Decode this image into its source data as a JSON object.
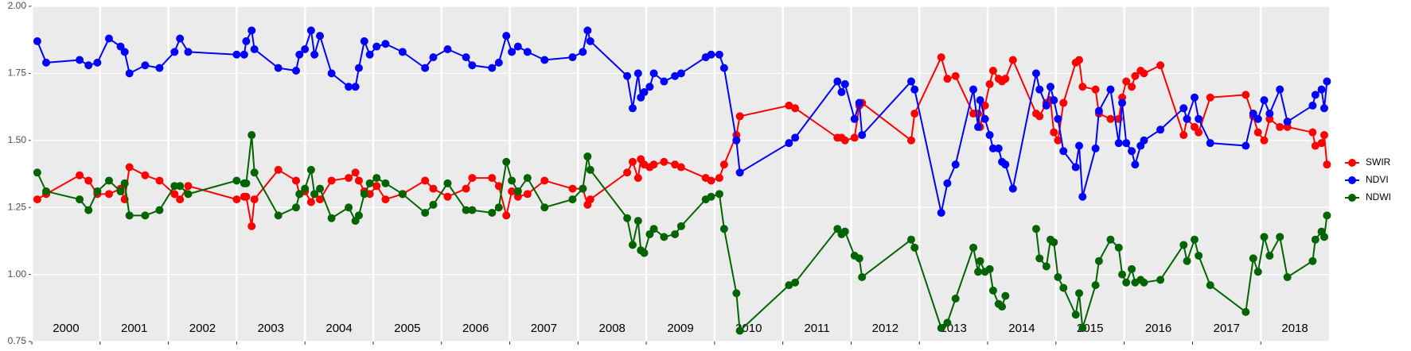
{
  "chart_data": {
    "type": "line",
    "x": [
      2000.08,
      2000.21,
      2000.7,
      2000.83,
      2000.96,
      2001.13,
      2001.3,
      2001.36,
      2001.43,
      2001.66,
      2001.87,
      2002.09,
      2002.17,
      2002.29,
      2003.0,
      2003.11,
      2003.14,
      2003.22,
      2003.26,
      2003.61,
      2003.87,
      2003.92,
      2004.0,
      2004.09,
      2004.14,
      2004.22,
      2004.39,
      2004.64,
      2004.74,
      2004.79,
      2004.87,
      2004.95,
      2005.05,
      2005.18,
      2005.43,
      2005.76,
      2005.88,
      2006.09,
      2006.36,
      2006.45,
      2006.74,
      2006.84,
      2006.95,
      2007.03,
      2007.12,
      2007.26,
      2007.51,
      2007.92,
      2008.07,
      2008.14,
      2008.18,
      2008.72,
      2008.8,
      2008.88,
      2008.92,
      2008.97,
      2009.05,
      2009.11,
      2009.26,
      2009.42,
      2009.51,
      2009.87,
      2009.95,
      2010.07,
      2010.14,
      2010.32,
      2010.37,
      2011.09,
      2011.18,
      2011.8,
      2011.86,
      2011.91,
      2012.05,
      2012.12,
      2012.16,
      2012.88,
      2012.93,
      2013.32,
      2013.41,
      2013.53,
      2013.79,
      2013.86,
      2013.89,
      2013.96,
      2014.03,
      2014.08,
      2014.16,
      2014.21,
      2014.26,
      2014.37,
      2014.71,
      2014.76,
      2014.86,
      2014.92,
      2014.97,
      2015.03,
      2015.11,
      2015.29,
      2015.34,
      2015.39,
      2015.58,
      2015.63,
      2015.8,
      2015.92,
      2015.97,
      2016.03,
      2016.11,
      2016.16,
      2016.24,
      2016.29,
      2016.53,
      2016.87,
      2016.92,
      2017.03,
      2017.09,
      2017.26,
      2017.78,
      2017.89,
      2017.96,
      2018.05,
      2018.13,
      2018.28,
      2018.39,
      2018.76,
      2018.8,
      2018.89,
      2018.93,
      2018.97
    ],
    "series": [
      {
        "name": "SWIR",
        "color": "#ff0000",
        "values": [
          1.28,
          1.3,
          1.37,
          1.35,
          1.3,
          1.3,
          1.32,
          1.28,
          1.4,
          1.37,
          1.35,
          1.3,
          1.28,
          1.33,
          1.28,
          1.29,
          1.29,
          1.18,
          1.28,
          1.39,
          1.35,
          1.3,
          1.31,
          1.27,
          1.3,
          1.28,
          1.35,
          1.36,
          1.38,
          1.35,
          1.31,
          1.3,
          1.33,
          1.28,
          1.3,
          1.35,
          1.32,
          1.29,
          1.32,
          1.36,
          1.36,
          1.33,
          1.22,
          1.31,
          1.29,
          1.3,
          1.35,
          1.32,
          1.32,
          1.26,
          1.28,
          1.38,
          1.42,
          1.36,
          1.43,
          1.41,
          1.4,
          1.41,
          1.42,
          1.41,
          1.4,
          1.36,
          1.35,
          1.36,
          1.41,
          1.52,
          1.59,
          1.63,
          1.62,
          1.51,
          1.51,
          1.5,
          1.51,
          1.63,
          1.64,
          1.5,
          1.6,
          1.81,
          1.73,
          1.74,
          1.6,
          1.6,
          1.55,
          1.63,
          1.71,
          1.76,
          1.73,
          1.72,
          1.73,
          1.8,
          1.6,
          1.59,
          1.64,
          1.65,
          1.53,
          1.5,
          1.64,
          1.79,
          1.8,
          1.7,
          1.69,
          1.6,
          1.58,
          1.58,
          1.66,
          1.72,
          1.7,
          1.74,
          1.76,
          1.75,
          1.78,
          1.52,
          1.58,
          1.55,
          1.53,
          1.66,
          1.67,
          1.59,
          1.53,
          1.5,
          1.58,
          1.55,
          1.55,
          1.53,
          1.48,
          1.49,
          1.52,
          1.41
        ]
      },
      {
        "name": "NDVI",
        "color": "#0000ff",
        "values": [
          1.87,
          1.79,
          1.8,
          1.78,
          1.79,
          1.88,
          1.85,
          1.83,
          1.75,
          1.78,
          1.77,
          1.83,
          1.88,
          1.83,
          1.82,
          1.82,
          1.87,
          1.91,
          1.84,
          1.77,
          1.76,
          1.82,
          1.84,
          1.91,
          1.82,
          1.89,
          1.75,
          1.7,
          1.7,
          1.77,
          1.87,
          1.82,
          1.85,
          1.86,
          1.83,
          1.77,
          1.81,
          1.84,
          1.81,
          1.78,
          1.77,
          1.79,
          1.89,
          1.83,
          1.85,
          1.83,
          1.8,
          1.81,
          1.83,
          1.91,
          1.87,
          1.74,
          1.62,
          1.75,
          1.66,
          1.68,
          1.7,
          1.75,
          1.72,
          1.74,
          1.75,
          1.81,
          1.82,
          1.82,
          1.77,
          1.5,
          1.38,
          1.49,
          1.51,
          1.72,
          1.68,
          1.71,
          1.58,
          1.64,
          1.52,
          1.72,
          1.69,
          1.23,
          1.34,
          1.41,
          1.69,
          1.55,
          1.65,
          1.58,
          1.52,
          1.47,
          1.47,
          1.42,
          1.41,
          1.32,
          1.75,
          1.69,
          1.63,
          1.7,
          1.65,
          1.58,
          1.46,
          1.4,
          1.48,
          1.29,
          1.47,
          1.61,
          1.69,
          1.49,
          1.64,
          1.49,
          1.46,
          1.41,
          1.48,
          1.5,
          1.54,
          1.62,
          1.58,
          1.66,
          1.58,
          1.49,
          1.48,
          1.6,
          1.58,
          1.65,
          1.6,
          1.69,
          1.57,
          1.63,
          1.67,
          1.69,
          1.62,
          1.72
        ]
      },
      {
        "name": "NDWI",
        "color": "#006400",
        "values": [
          1.38,
          1.31,
          1.28,
          1.24,
          1.31,
          1.35,
          1.31,
          1.34,
          1.22,
          1.22,
          1.24,
          1.33,
          1.33,
          1.3,
          1.35,
          1.34,
          1.34,
          1.52,
          1.38,
          1.22,
          1.25,
          1.3,
          1.32,
          1.39,
          1.3,
          1.32,
          1.21,
          1.25,
          1.2,
          1.22,
          1.3,
          1.34,
          1.36,
          1.34,
          1.3,
          1.23,
          1.26,
          1.34,
          1.24,
          1.24,
          1.23,
          1.25,
          1.42,
          1.35,
          1.31,
          1.36,
          1.25,
          1.28,
          1.32,
          1.44,
          1.39,
          1.21,
          1.11,
          1.2,
          1.09,
          1.08,
          1.15,
          1.17,
          1.14,
          1.15,
          1.18,
          1.28,
          1.29,
          1.3,
          1.17,
          0.93,
          0.79,
          0.96,
          0.97,
          1.17,
          1.15,
          1.16,
          1.07,
          1.06,
          0.99,
          1.13,
          1.1,
          0.8,
          0.82,
          0.91,
          1.1,
          1.01,
          1.05,
          1.01,
          1.02,
          0.94,
          0.89,
          0.88,
          0.92,
          null,
          1.17,
          1.06,
          1.03,
          1.13,
          1.12,
          0.99,
          0.95,
          0.85,
          0.93,
          0.8,
          0.96,
          1.05,
          1.13,
          1.1,
          1.0,
          0.97,
          1.02,
          0.97,
          0.98,
          0.97,
          0.98,
          1.11,
          1.05,
          1.13,
          1.07,
          0.96,
          0.86,
          1.06,
          1.01,
          1.14,
          1.07,
          1.14,
          0.99,
          1.05,
          1.13,
          1.16,
          1.14,
          1.22
        ]
      }
    ],
    "xlim": [
      2000,
      2019
    ],
    "xticks": [
      2000,
      2001,
      2002,
      2003,
      2004,
      2005,
      2006,
      2007,
      2008,
      2009,
      2010,
      2011,
      2012,
      2013,
      2014,
      2015,
      2016,
      2017,
      2018
    ],
    "ylim": [
      0.75,
      2.0
    ],
    "yticks": [
      0.75,
      {
        "value": 1,
        "label": "1.00"
      },
      1.25,
      {
        "value": 1.5,
        "label": "1.50"
      },
      1.75,
      {
        "value": 2,
        "label": "2.00"
      }
    ],
    "grid": true,
    "legend": "right"
  }
}
